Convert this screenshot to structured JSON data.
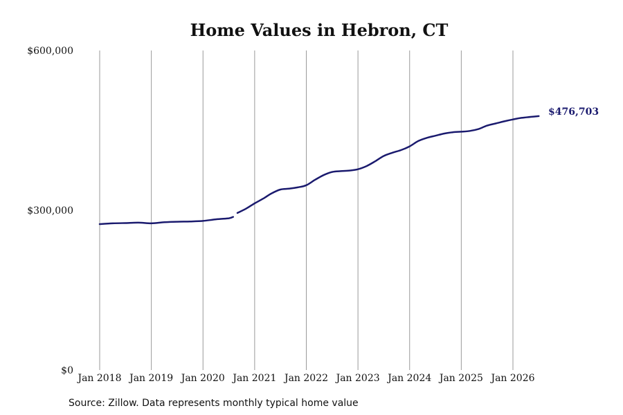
{
  "chart_data": {
    "type": "line",
    "title": "Home Values in Hebron, CT",
    "source": "Source: Zillow. Data represents monthly typical home value",
    "x_ticks": [
      "Jan 2018",
      "Jan 2019",
      "Jan 2020",
      "Jan 2021",
      "Jan 2022",
      "Jan 2023",
      "Jan 2024",
      "Jan 2025",
      "Jan 2026"
    ],
    "y_ticks": [
      {
        "value": 0,
        "label": "$0"
      },
      {
        "value": 300000,
        "label": "$300,000"
      },
      {
        "value": 600000,
        "label": "$600,000"
      }
    ],
    "ylim": [
      0,
      600000
    ],
    "xlim": [
      "2018-01",
      "2026-07"
    ],
    "grid": "vertical",
    "line_color": "#1a1a6e",
    "end_label": "$476,703",
    "series": [
      {
        "segments": [
          [
            [
              "2018-01",
              274000
            ],
            [
              "2018-04",
              275500
            ],
            [
              "2018-07",
              276000
            ],
            [
              "2018-10",
              276800
            ],
            [
              "2019-01",
              275500
            ],
            [
              "2019-04",
              277500
            ],
            [
              "2019-07",
              278500
            ],
            [
              "2019-10",
              279000
            ],
            [
              "2020-01",
              280000
            ],
            [
              "2020-04",
              283000
            ],
            [
              "2020-07",
              285000
            ],
            [
              "2020-08",
              287500
            ]
          ],
          [
            [
              "2020-09",
              295000
            ],
            [
              "2020-11",
              303000
            ],
            [
              "2021-01",
              313000
            ],
            [
              "2021-03",
              322000
            ],
            [
              "2021-05",
              332000
            ],
            [
              "2021-07",
              339000
            ],
            [
              "2021-09",
              340500
            ],
            [
              "2021-11",
              343000
            ],
            [
              "2022-01",
              347000
            ],
            [
              "2022-03",
              357000
            ],
            [
              "2022-05",
              366000
            ],
            [
              "2022-07",
              372000
            ],
            [
              "2022-09",
              373500
            ],
            [
              "2022-11",
              374500
            ],
            [
              "2023-01",
              377000
            ],
            [
              "2023-03",
              383000
            ],
            [
              "2023-05",
              392000
            ],
            [
              "2023-07",
              402000
            ],
            [
              "2023-09",
              408000
            ],
            [
              "2023-11",
              413000
            ],
            [
              "2024-01",
              420000
            ],
            [
              "2024-03",
              430000
            ],
            [
              "2024-05",
              436000
            ],
            [
              "2024-07",
              440000
            ],
            [
              "2024-09",
              444000
            ],
            [
              "2024-11",
              446500
            ],
            [
              "2025-01",
              447500
            ],
            [
              "2025-03",
              449000
            ],
            [
              "2025-05",
              452500
            ],
            [
              "2025-07",
              459000
            ],
            [
              "2025-09",
              463000
            ],
            [
              "2025-11",
              467000
            ],
            [
              "2026-01",
              470500
            ],
            [
              "2026-03",
              473500
            ],
            [
              "2026-07",
              476703
            ]
          ]
        ]
      }
    ]
  }
}
